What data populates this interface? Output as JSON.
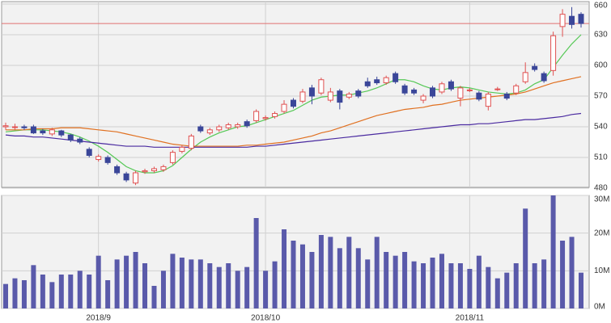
{
  "chart_data": {
    "type": "candlestick",
    "categories": [
      null,
      null,
      null,
      null,
      null,
      null,
      null,
      null,
      null,
      null,
      "2018/9",
      null,
      null,
      null,
      null,
      null,
      null,
      null,
      null,
      null,
      null,
      null,
      null,
      null,
      null,
      null,
      null,
      null,
      "2018/10",
      null,
      null,
      null,
      null,
      null,
      null,
      null,
      null,
      null,
      null,
      null,
      null,
      null,
      null,
      null,
      null,
      null,
      null,
      null,
      null,
      null,
      "2018/11",
      null,
      null,
      null,
      null,
      null,
      null,
      null,
      null,
      null,
      null,
      null,
      null
    ],
    "open": [
      540,
      540,
      540,
      540,
      536,
      533,
      536,
      532,
      528,
      518,
      508,
      510,
      501,
      494,
      485,
      496,
      497,
      498,
      505,
      516,
      519,
      540,
      534,
      537,
      539,
      540,
      545,
      546,
      548,
      550,
      555,
      566,
      565,
      578,
      573,
      566,
      575,
      569,
      575,
      584,
      586,
      583,
      592,
      580,
      576,
      566,
      578,
      574,
      584,
      568,
      576,
      573,
      560,
      577,
      572,
      573,
      584,
      599,
      592,
      595,
      638,
      648,
      650
    ],
    "high": [
      544,
      543,
      542,
      542,
      538,
      539,
      537,
      533,
      530,
      520,
      513,
      512,
      503,
      496,
      497,
      499,
      501,
      503,
      517,
      522,
      533,
      542,
      539,
      542,
      544,
      544,
      547,
      557,
      551,
      555,
      566,
      568,
      577,
      581,
      588,
      578,
      577,
      574,
      577,
      588,
      589,
      590,
      594,
      582,
      578,
      572,
      580,
      584,
      586,
      580,
      578,
      575,
      574,
      579,
      574,
      582,
      603,
      602,
      594,
      633,
      655,
      657,
      652
    ],
    "low": [
      537,
      537,
      537,
      533,
      532,
      531,
      530,
      525,
      523,
      510,
      506,
      503,
      493,
      486,
      483,
      494,
      495,
      496,
      503,
      514,
      517,
      534,
      532,
      535,
      537,
      538,
      539,
      544,
      546,
      548,
      553,
      558,
      563,
      562,
      571,
      564,
      557,
      567,
      568,
      578,
      581,
      581,
      582,
      571,
      571,
      563,
      568,
      572,
      575,
      560,
      574,
      565,
      556,
      575,
      566,
      571,
      582,
      594,
      583,
      590,
      628,
      636,
      637
    ],
    "close": [
      541,
      540,
      539,
      534,
      534,
      537,
      532,
      527,
      525,
      512,
      511,
      505,
      495,
      488,
      495,
      497,
      499,
      501,
      515,
      520,
      531,
      536,
      537,
      540,
      542,
      542,
      541,
      555,
      549,
      553,
      562,
      560,
      574,
      570,
      586,
      574,
      564,
      572,
      570,
      580,
      583,
      588,
      584,
      573,
      573,
      570,
      570,
      582,
      577,
      578,
      576,
      567,
      572,
      577,
      568,
      580,
      593,
      596,
      585,
      629,
      650,
      640,
      641
    ],
    "up_color": "#e05050",
    "down_color": "#3a4699",
    "ma": [
      {
        "color": "#55c855",
        "values": [
          535,
          536,
          537,
          537,
          537,
          536,
          535,
          533,
          530,
          526,
          521,
          515,
          508,
          501,
          497,
          495,
          495,
          497,
          502,
          510,
          518,
          525,
          530,
          534,
          537,
          540,
          541,
          544,
          547,
          550,
          553,
          556,
          561,
          566,
          569,
          570,
          571,
          571,
          573,
          575,
          578,
          582,
          586,
          586,
          584,
          580,
          577,
          576,
          578,
          579,
          578,
          576,
          574,
          573,
          572,
          573,
          576,
          582,
          586,
          598,
          610,
          621,
          630
        ]
      },
      {
        "color": "#e07020",
        "values": [
          537,
          537,
          537,
          538,
          538,
          538,
          539,
          539,
          539,
          538,
          537,
          536,
          535,
          533,
          531,
          529,
          527,
          525,
          523,
          522,
          521,
          521,
          521,
          521,
          521,
          521,
          522,
          522,
          523,
          524,
          525,
          527,
          529,
          531,
          534,
          536,
          539,
          542,
          545,
          548,
          551,
          553,
          555,
          557,
          558,
          559,
          561,
          562,
          564,
          566,
          567,
          568,
          569,
          570,
          571,
          572,
          574,
          577,
          580,
          583,
          585,
          587,
          589
        ]
      },
      {
        "color": "#4a2aa0",
        "values": [
          532,
          531,
          531,
          530,
          530,
          529,
          528,
          527,
          526,
          525,
          524,
          523,
          522,
          521,
          521,
          521,
          520,
          520,
          520,
          520,
          520,
          520,
          520,
          520,
          520,
          520,
          520,
          521,
          521,
          522,
          523,
          524,
          525,
          526,
          527,
          528,
          529,
          530,
          531,
          532,
          533,
          534,
          535,
          536,
          537,
          538,
          539,
          540,
          541,
          542,
          542,
          543,
          543,
          544,
          545,
          546,
          547,
          547,
          548,
          549,
          550,
          552,
          553
        ]
      }
    ],
    "reference_line": 641,
    "reference_color": "#e07070",
    "ylim": [
      480,
      660
    ],
    "yticks": [
      480,
      510,
      540,
      570,
      600,
      630,
      660
    ],
    "volume": [
      6500000,
      8000000,
      7500000,
      11500000,
      9000000,
      7000000,
      9000000,
      9000000,
      10000000,
      9000000,
      14000000,
      7500000,
      13000000,
      14000000,
      15000000,
      12000000,
      6000000,
      10000000,
      14500000,
      13500000,
      13000000,
      13000000,
      12000000,
      11000000,
      12000000,
      10000000,
      11000000,
      24000000,
      10000000,
      12500000,
      21000000,
      18000000,
      17000000,
      15000000,
      19500000,
      19000000,
      16000000,
      19000000,
      16000000,
      13000000,
      19000000,
      15000000,
      14000000,
      15000000,
      12500000,
      12000000,
      13500000,
      14500000,
      12000000,
      12000000,
      10500000,
      14000000,
      11000000,
      8000000,
      9500000,
      12000000,
      26500000,
      12000000,
      13000000,
      30000000,
      18000000,
      19000000,
      9500000
    ],
    "volume_color": "#5a5aaa",
    "vlim": [
      0,
      30000000
    ],
    "vticks": [
      {
        "value": 0,
        "label": "0M"
      },
      {
        "value": 10000000,
        "label": "10M"
      },
      {
        "value": 20000000,
        "label": "20M"
      },
      {
        "value": 30000000,
        "label": "30M"
      }
    ],
    "grid": true
  }
}
